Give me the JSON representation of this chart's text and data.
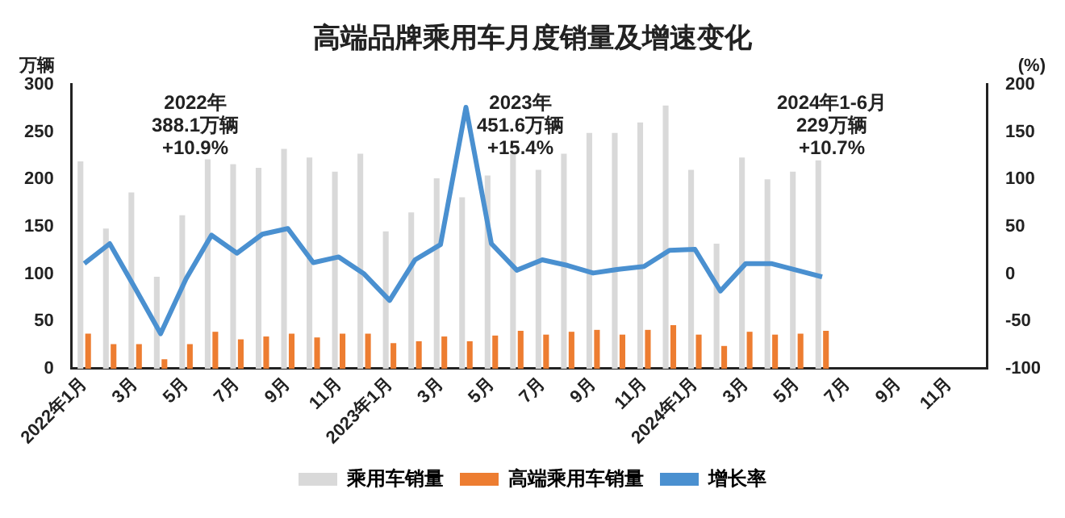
{
  "chart_data": {
    "type": "bar",
    "title": "高端品牌乘用车月度销量及增速变化",
    "ylabel": "万辆",
    "y2label": "(%)",
    "categories": [
      "2022年1月",
      null,
      "3月",
      null,
      "5月",
      null,
      "7月",
      null,
      "9月",
      null,
      "11月",
      null,
      "2023年1月",
      null,
      "3月",
      null,
      "5月",
      null,
      "7月",
      null,
      "9月",
      null,
      "11月",
      null,
      "2024年1月",
      null,
      "3月",
      null,
      "5月",
      null,
      "7月",
      null,
      "9月",
      null,
      "11月",
      null
    ],
    "series": [
      {
        "name": "乘用车销量",
        "color": "#d9d9d9",
        "values": [
          219,
          148,
          186,
          97,
          162,
          221,
          216,
          212,
          232,
          223,
          208,
          227,
          145,
          165,
          201,
          181,
          204,
          227,
          210,
          227,
          249,
          249,
          260,
          278,
          210,
          132,
          223,
          200,
          208,
          220,
          null,
          null,
          null,
          null,
          null,
          null
        ]
      },
      {
        "name": "高端乘用车销量",
        "color": "#ed7d31",
        "values": [
          37,
          26,
          26,
          10,
          26,
          39,
          31,
          34,
          37,
          33,
          37,
          37,
          27,
          29,
          34,
          29,
          35,
          40,
          36,
          39,
          41,
          36,
          41,
          46,
          36,
          24,
          39,
          36,
          37,
          40,
          null,
          null,
          null,
          null,
          null,
          null
        ]
      },
      {
        "name": "增长率",
        "type": "line",
        "axis": "y2",
        "color": "#4a90d0",
        "values": [
          11,
          32,
          -15,
          -63,
          -5,
          41,
          22,
          42,
          48,
          12,
          18,
          0,
          -28,
          15,
          31,
          176,
          32,
          4,
          15,
          9,
          1,
          5,
          8,
          25,
          26,
          -18,
          11,
          11,
          4,
          -3,
          null,
          null,
          null,
          null,
          null,
          null
        ]
      }
    ],
    "ylim": [
      0,
      300
    ],
    "yticks": [
      0,
      50,
      100,
      150,
      200,
      250,
      300
    ],
    "y2lim": [
      -100,
      200
    ],
    "y2ticks": [
      -100,
      -50,
      0,
      50,
      100,
      150,
      200
    ],
    "grid": false,
    "legend": "bottom",
    "marker": "none",
    "annotations": [
      "2022年\n388.1万辆\n+10.9%",
      "2023年\n451.6万辆\n+15.4%",
      "2024年1-6月\n229万辆\n+10.7%"
    ]
  }
}
